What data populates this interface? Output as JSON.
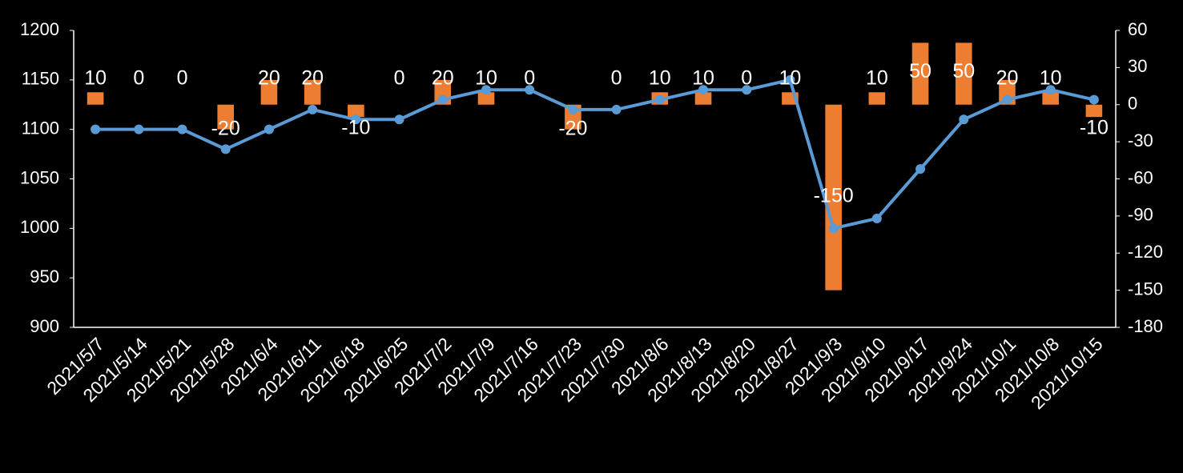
{
  "chart_data": {
    "type": "bar-line",
    "categories": [
      "2021/5/7",
      "2021/5/14",
      "2021/5/21",
      "2021/5/28",
      "2021/6/4",
      "2021/6/11",
      "2021/6/18",
      "2021/6/25",
      "2021/7/2",
      "2021/7/9",
      "2021/7/16",
      "2021/7/23",
      "2021/7/30",
      "2021/8/6",
      "2021/8/13",
      "2021/8/20",
      "2021/8/27",
      "2021/9/3",
      "2021/9/10",
      "2021/9/17",
      "2021/9/24",
      "2021/10/1",
      "2021/10/8",
      "2021/10/15"
    ],
    "series": [
      {
        "type": "bar",
        "axis": "y2",
        "color": "#ed7d31",
        "data_labels": true,
        "values": [
          10,
          0,
          0,
          -20,
          20,
          20,
          -10,
          0,
          20,
          10,
          0,
          -20,
          0,
          10,
          10,
          0,
          10,
          -150,
          10,
          50,
          50,
          20,
          10,
          -10
        ]
      },
      {
        "type": "line",
        "axis": "y",
        "color": "#5b9bd5",
        "values": [
          1100,
          1100,
          1100,
          1080,
          1100,
          1120,
          1110,
          1110,
          1130,
          1140,
          1140,
          1120,
          1120,
          1130,
          1140,
          1140,
          1150,
          1000,
          1010,
          1060,
          1110,
          1130,
          1140,
          1130
        ]
      }
    ],
    "ylim": [
      900,
      1200
    ],
    "yticks": [
      900,
      950,
      1000,
      1050,
      1100,
      1150,
      1200
    ],
    "y2lim": [
      -180,
      60
    ],
    "y2ticks": [
      -180,
      -150,
      -120,
      -90,
      -60,
      -30,
      0,
      30,
      60
    ]
  }
}
